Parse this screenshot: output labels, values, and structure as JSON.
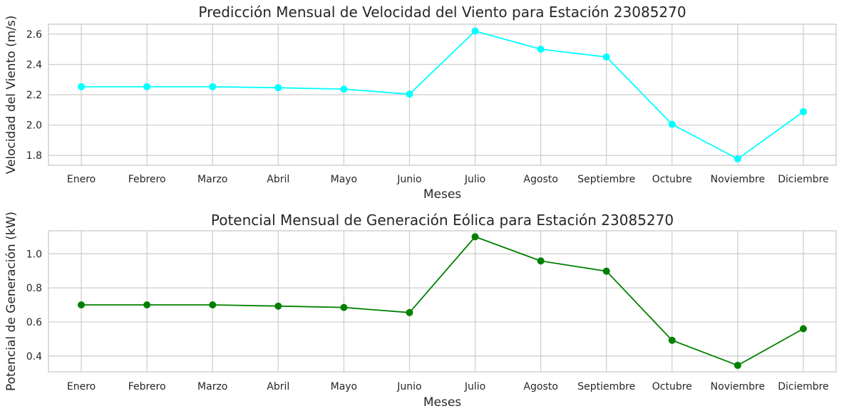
{
  "chart_data": [
    {
      "type": "line",
      "title": "Predicción Mensual de Velocidad del Viento para Estación 23085270",
      "xlabel": "Meses",
      "ylabel": "Velocidad del Viento (m/s)",
      "categories": [
        "Enero",
        "Febrero",
        "Marzo",
        "Abril",
        "Mayo",
        "Junio",
        "Julio",
        "Agosto",
        "Septiembre",
        "Octubre",
        "Noviembre",
        "Diciembre"
      ],
      "series": [
        {
          "values": [
            2.253,
            2.253,
            2.253,
            2.246,
            2.237,
            2.204,
            2.62,
            2.5,
            2.449,
            2.005,
            1.777,
            2.088
          ],
          "color": "#00ffff"
        }
      ],
      "ylim": [
        1.735,
        2.665
      ],
      "yticks": [
        1.8,
        2.0,
        2.2,
        2.4,
        2.6
      ],
      "ytick_labels": [
        "1.8",
        "2.0",
        "2.2",
        "2.4",
        "2.6"
      ],
      "grid": true,
      "legend": "none"
    },
    {
      "type": "line",
      "title": "Potencial Mensual de Generación Eólica para Estación 23085270",
      "xlabel": "Meses",
      "ylabel": "Potencial de Generación (kW)",
      "categories": [
        "Enero",
        "Febrero",
        "Marzo",
        "Abril",
        "Mayo",
        "Junio",
        "Julio",
        "Agosto",
        "Septiembre",
        "Octubre",
        "Noviembre",
        "Diciembre"
      ],
      "series": [
        {
          "values": [
            0.7,
            0.7,
            0.7,
            0.693,
            0.685,
            0.655,
            1.1,
            0.958,
            0.898,
            0.492,
            0.345,
            0.56
          ],
          "color": "#008000"
        }
      ],
      "ylim": [
        0.307,
        1.135
      ],
      "yticks": [
        0.4,
        0.6,
        0.8,
        1.0
      ],
      "ytick_labels": [
        "0.4",
        "0.6",
        "0.8",
        "1.0"
      ],
      "grid": true,
      "legend": "none"
    }
  ]
}
